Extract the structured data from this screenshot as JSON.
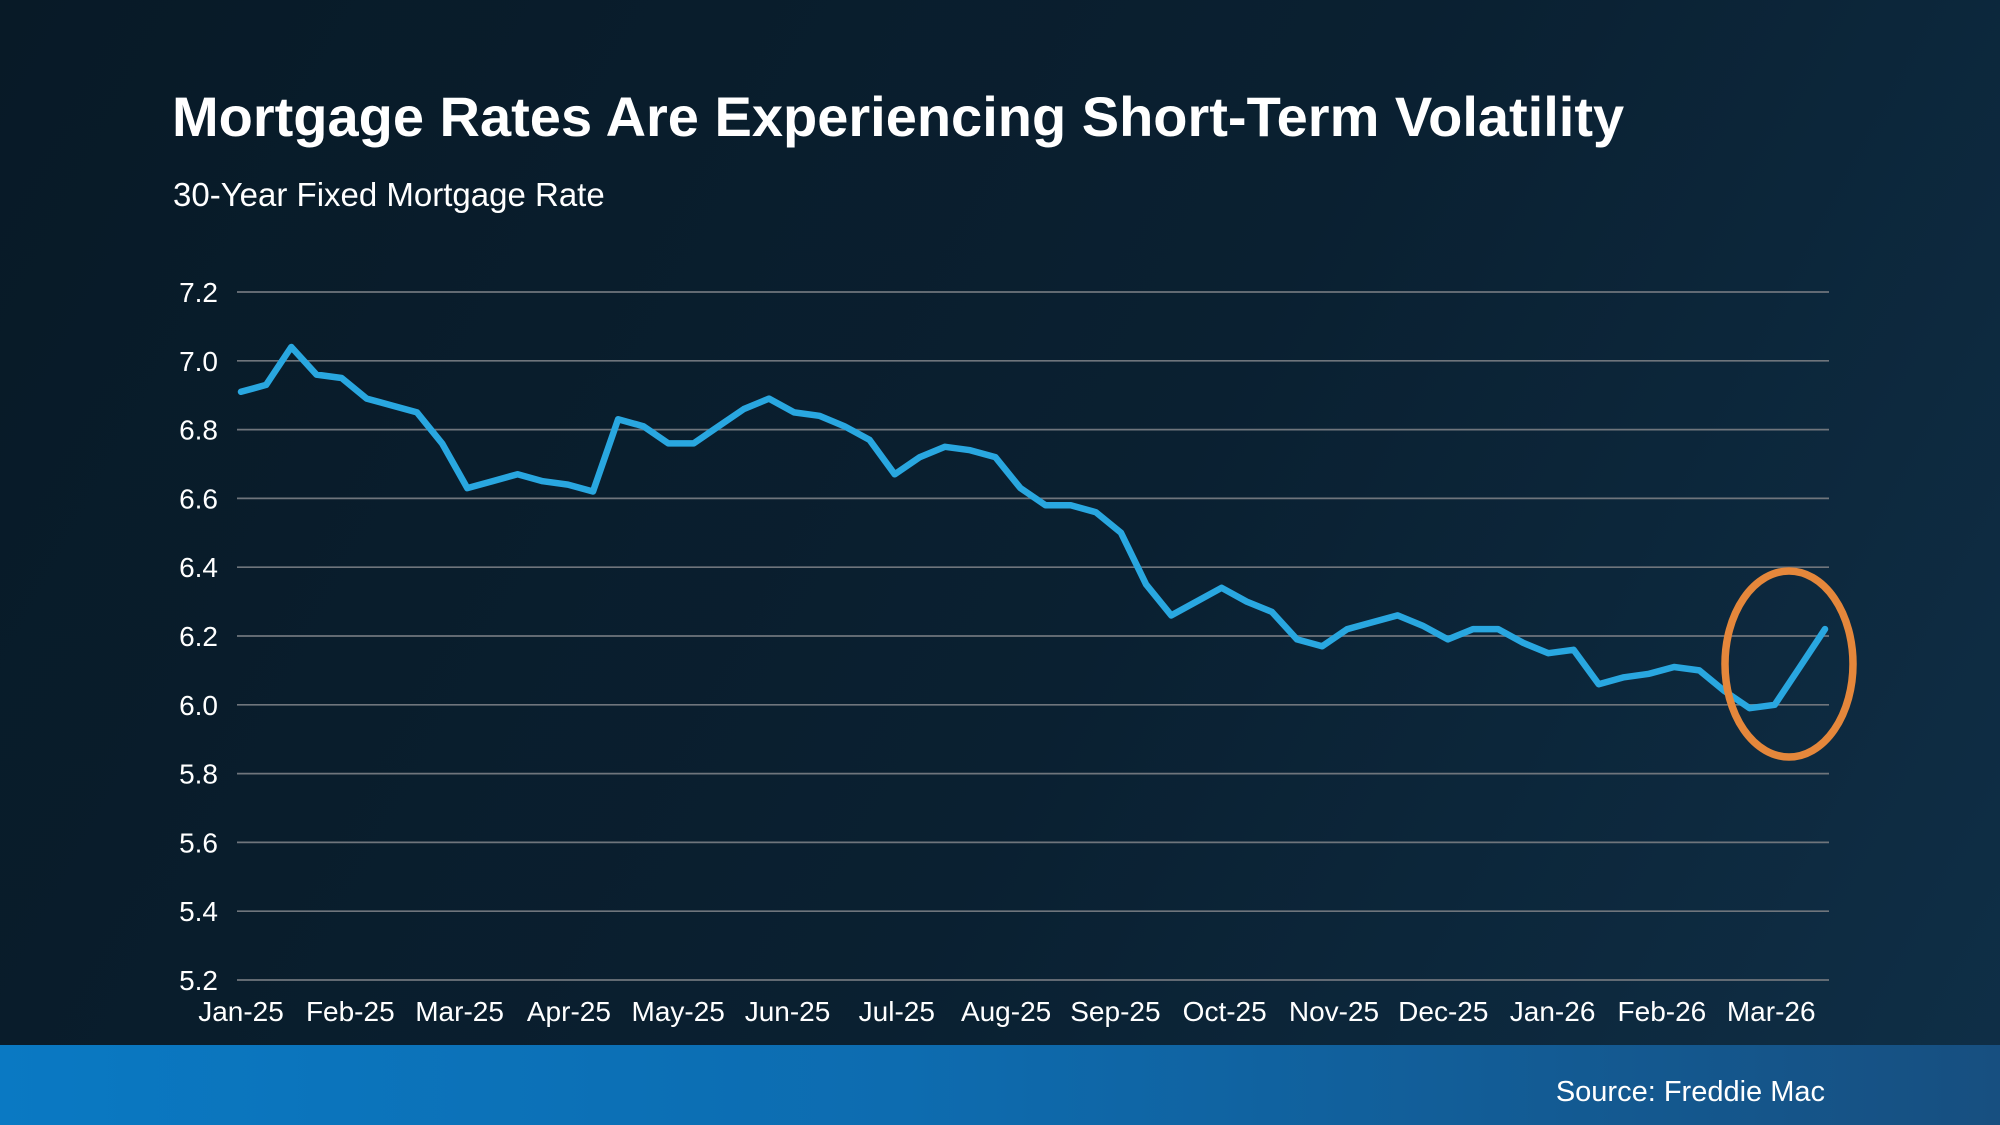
{
  "header": {
    "title": "Mortgage Rates Are Experiencing Short-Term Volatility",
    "subtitle": "30-Year Fixed Mortgage Rate"
  },
  "footer": {
    "source": "Source: Freddie Mac"
  },
  "colors": {
    "background_top": "#081a27",
    "background_bottom_right": "#0f2f47",
    "line": "#29a7e0",
    "gridline": "#6f757c",
    "text": "#ffffff",
    "annotation": "#e5873b",
    "footer_bar_left": "#0a79c3",
    "footer_bar_right": "#174f80"
  },
  "chart_data": {
    "type": "line",
    "title": "Mortgage Rates Are Experiencing Short-Term Volatility",
    "subtitle": "30-Year Fixed Mortgage Rate",
    "frequency": "weekly",
    "x_tick_labels": [
      "Jan-25",
      "Feb-25",
      "Mar-25",
      "Apr-25",
      "May-25",
      "Jun-25",
      "Jul-25",
      "Aug-25",
      "Sep-25",
      "Oct-25",
      "Nov-25",
      "Dec-25",
      "Jan-26",
      "Feb-26",
      "Mar-26"
    ],
    "y_tick_labels": [
      "7.2",
      "7.0",
      "6.8",
      "6.6",
      "6.4",
      "6.2",
      "6.0",
      "5.8",
      "5.6",
      "5.4",
      "5.2"
    ],
    "ylim": [
      5.2,
      7.2
    ],
    "grid": "horizontal",
    "legend": "none",
    "series": [
      {
        "name": "30-Year Fixed Mortgage Rate (%)",
        "color": "#29a7e0",
        "values": [
          6.91,
          6.93,
          7.04,
          6.96,
          6.95,
          6.89,
          6.87,
          6.85,
          6.76,
          6.63,
          6.65,
          6.67,
          6.65,
          6.64,
          6.62,
          6.83,
          6.81,
          6.76,
          6.76,
          6.81,
          6.86,
          6.89,
          6.85,
          6.84,
          6.81,
          6.77,
          6.67,
          6.72,
          6.75,
          6.74,
          6.72,
          6.63,
          6.58,
          6.58,
          6.56,
          6.5,
          6.35,
          6.26,
          6.3,
          6.34,
          6.3,
          6.27,
          6.19,
          6.17,
          6.22,
          6.24,
          6.26,
          6.23,
          6.19,
          6.22,
          6.22,
          6.18,
          6.15,
          6.16,
          6.06,
          6.08,
          6.09,
          6.11,
          6.1,
          6.04,
          5.99,
          6.0,
          6.11,
          6.22
        ]
      }
    ],
    "annotation": {
      "shape": "ellipse",
      "color": "#e5873b",
      "highlights": "recent dip to 5.99 and rebound to 6.22 (Feb–Mar 2026)"
    }
  }
}
